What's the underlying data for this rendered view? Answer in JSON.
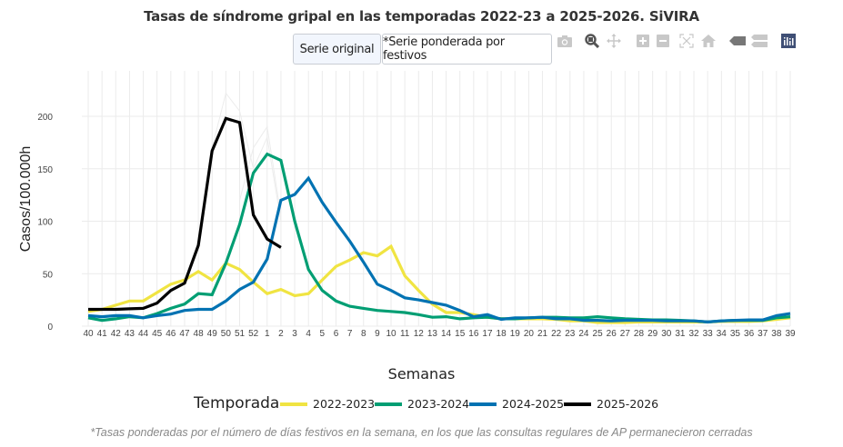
{
  "title": "Tasas de síndrome gripal en las temporadas 2022-23 a 2025-2026. SiVIRA",
  "buttons": {
    "original": "Serie original",
    "weighted": "*Serie ponderada por festivos"
  },
  "modebar": [
    {
      "name": "camera-icon",
      "label": "Download plot as png"
    },
    {
      "name": "zoom-icon",
      "label": "Zoom"
    },
    {
      "name": "pan-icon",
      "label": "Pan"
    },
    {
      "name": "zoom-in-icon",
      "label": "Zoom in"
    },
    {
      "name": "zoom-out-icon",
      "label": "Zoom out"
    },
    {
      "name": "autoscale-icon",
      "label": "Autoscale"
    },
    {
      "name": "home-icon",
      "label": "Reset axes"
    },
    {
      "name": "spike-lines-icon",
      "label": "Show closest data on hover"
    },
    {
      "name": "compare-icon",
      "label": "Compare data on hover"
    },
    {
      "name": "plotly-logo-icon",
      "label": "Produced with Plotly"
    }
  ],
  "footnote": "*Tasas ponderadas por el número de días festivos en la semana, en los que las consultas regulares de AP permanecieron cerradas",
  "chart_data": {
    "type": "line",
    "title": "Tasas de síndrome gripal en las temporadas 2022-23 a 2025-2026. SiVIRA",
    "xlabel": "Semanas",
    "ylabel": "Casos/100.000h",
    "ylim": [
      0,
      225
    ],
    "yticks": [
      0,
      50,
      100,
      150,
      200
    ],
    "grid": true,
    "legend_title": "Temporada",
    "legend_position": "bottom",
    "x": [
      "40",
      "41",
      "42",
      "43",
      "44",
      "45",
      "46",
      "47",
      "48",
      "49",
      "50",
      "51",
      "52",
      "1",
      "2",
      "3",
      "4",
      "5",
      "6",
      "7",
      "8",
      "9",
      "10",
      "11",
      "12",
      "13",
      "14",
      "15",
      "16",
      "17",
      "18",
      "19",
      "20",
      "21",
      "22",
      "23",
      "24",
      "25",
      "26",
      "27",
      "28",
      "29",
      "30",
      "31",
      "32",
      "33",
      "34",
      "35",
      "36",
      "37",
      "38",
      "39"
    ],
    "series": [
      {
        "name": "2022-2023",
        "color": "#f0e442",
        "values": [
          14,
          16,
          20,
          24,
          24,
          32,
          40,
          44,
          52,
          44,
          60,
          54,
          42,
          31,
          35,
          29,
          31,
          44,
          57,
          63,
          70,
          67,
          76,
          48,
          34,
          21,
          13,
          13,
          11,
          8.5,
          7,
          7,
          7,
          7,
          6.5,
          5,
          5,
          3.5,
          3.5,
          3.5,
          4,
          4,
          4,
          4,
          4,
          4,
          4.5,
          4.5,
          4.5,
          5,
          6.5,
          8
        ]
      },
      {
        "name": "2023-2024",
        "color": "#009e73",
        "values": [
          8,
          5.5,
          7,
          9,
          8,
          12,
          17,
          21,
          31,
          30,
          60,
          97,
          146,
          164,
          158,
          100,
          54,
          34,
          24,
          19,
          17,
          15,
          14,
          13,
          11,
          8.5,
          9,
          7,
          8,
          8.5,
          7,
          7,
          8,
          8.5,
          8.5,
          8,
          8,
          9,
          8,
          7,
          6.5,
          6,
          6,
          5.5,
          5,
          4,
          5,
          5.5,
          5.5,
          5.5,
          8,
          9
        ]
      },
      {
        "name": "2024-2025",
        "color": "#0072b2",
        "values": [
          10,
          9,
          10,
          10,
          8,
          10,
          11.5,
          15,
          16,
          16,
          24,
          35,
          42,
          64,
          120,
          125.5,
          141,
          118,
          99,
          81,
          61,
          40,
          34,
          27,
          25,
          22.5,
          20,
          15,
          9,
          11,
          6.5,
          8,
          8,
          8.5,
          7,
          7,
          5.5,
          5.5,
          5,
          5.5,
          5.5,
          5.5,
          5,
          5,
          5,
          4,
          5,
          5.5,
          6,
          6,
          10,
          12
        ]
      },
      {
        "name": "2025-2026",
        "color": "#000000",
        "values": [
          16,
          16,
          16,
          16.5,
          17,
          22,
          34,
          41,
          77,
          167,
          198,
          194,
          106,
          83,
          75,
          null,
          null,
          null,
          null,
          null,
          null,
          null,
          null,
          null,
          null,
          null,
          null,
          null,
          null,
          null,
          null,
          null,
          null,
          null,
          null,
          null,
          null,
          null,
          null,
          null,
          null,
          null,
          null,
          null,
          null,
          null,
          null,
          null,
          null,
          null,
          null,
          null
        ]
      }
    ]
  }
}
